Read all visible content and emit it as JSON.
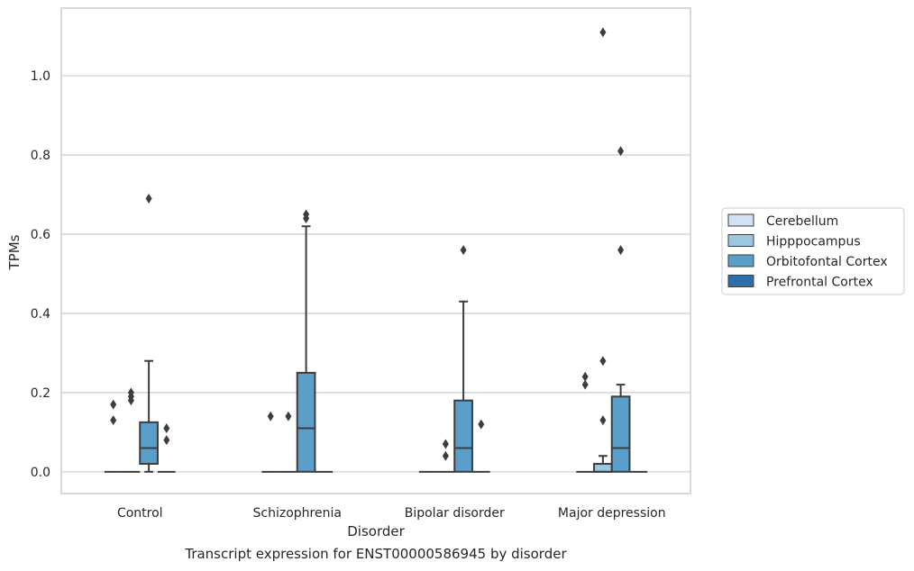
{
  "chart_data": {
    "type": "box",
    "caption": "Transcript expression for ENST00000586945 by disorder",
    "xlabel": "Disorder",
    "ylabel": "TPMs",
    "ylim": [
      -0.055,
      1.171
    ],
    "yticks": [
      0.0,
      0.2,
      0.4,
      0.6,
      0.8,
      1.0
    ],
    "ytick_labels": [
      "0.0",
      "0.2",
      "0.4",
      "0.6",
      "0.8",
      "1.0"
    ],
    "grid": "horizontal",
    "legend_position": "right",
    "categories": [
      "Control",
      "Schizophrenia",
      "Bipolar disorder",
      "Major depression"
    ],
    "series": [
      {
        "name": "Cerebellum",
        "color": "#d1e3f3",
        "boxes": [
          {
            "q1": 0,
            "median": 0,
            "q3": 0,
            "whisker_low": 0,
            "whisker_high": 0,
            "outliers": [
              0.13,
              0.17
            ]
          },
          {
            "q1": 0,
            "median": 0,
            "q3": 0,
            "whisker_low": 0,
            "whisker_high": 0,
            "outliers": [
              0.14
            ]
          },
          {
            "q1": 0,
            "median": 0,
            "q3": 0,
            "whisker_low": 0,
            "whisker_high": 0,
            "outliers": []
          },
          {
            "q1": 0,
            "median": 0,
            "q3": 0,
            "whisker_low": 0,
            "whisker_high": 0,
            "outliers": [
              0.22,
              0.24
            ]
          }
        ]
      },
      {
        "name": "Hipppocampus",
        "color": "#9ac8e0",
        "boxes": [
          {
            "q1": 0,
            "median": 0,
            "q3": 0,
            "whisker_low": 0,
            "whisker_high": 0,
            "outliers": [
              0.18,
              0.19,
              0.2
            ]
          },
          {
            "q1": 0,
            "median": 0,
            "q3": 0,
            "whisker_low": 0,
            "whisker_high": 0,
            "outliers": [
              0.14
            ]
          },
          {
            "q1": 0,
            "median": 0,
            "q3": 0,
            "whisker_low": 0,
            "whisker_high": 0,
            "outliers": [
              0.04,
              0.07
            ]
          },
          {
            "q1": 0,
            "median": 0,
            "q3": 0.02,
            "whisker_low": 0,
            "whisker_high": 0.04,
            "outliers": [
              0.13,
              0.28,
              1.11
            ]
          }
        ]
      },
      {
        "name": "Orbitofontal Cortex",
        "color": "#5a9fca",
        "boxes": [
          {
            "q1": 0.02,
            "median": 0.06,
            "q3": 0.125,
            "whisker_low": 0,
            "whisker_high": 0.28,
            "outliers": [
              0.69
            ]
          },
          {
            "q1": 0,
            "median": 0.11,
            "q3": 0.25,
            "whisker_low": 0,
            "whisker_high": 0.62,
            "outliers": [
              0.64,
              0.65
            ]
          },
          {
            "q1": 0,
            "median": 0.06,
            "q3": 0.18,
            "whisker_low": 0,
            "whisker_high": 0.43,
            "outliers": [
              0.56
            ]
          },
          {
            "q1": 0,
            "median": 0.06,
            "q3": 0.19,
            "whisker_low": 0,
            "whisker_high": 0.22,
            "outliers": [
              0.56,
              0.81
            ]
          }
        ]
      },
      {
        "name": "Prefrontal Cortex",
        "color": "#2f6fab",
        "boxes": [
          {
            "q1": 0,
            "median": 0,
            "q3": 0,
            "whisker_low": 0,
            "whisker_high": 0,
            "outliers": [
              0.08,
              0.11
            ]
          },
          {
            "q1": 0,
            "median": 0,
            "q3": 0,
            "whisker_low": 0,
            "whisker_high": 0,
            "outliers": []
          },
          {
            "q1": 0,
            "median": 0,
            "q3": 0,
            "whisker_low": 0,
            "whisker_high": 0,
            "outliers": [
              0.12
            ]
          },
          {
            "q1": 0,
            "median": 0,
            "q3": 0,
            "whisker_low": 0,
            "whisker_high": 0,
            "outliers": []
          }
        ]
      }
    ]
  }
}
